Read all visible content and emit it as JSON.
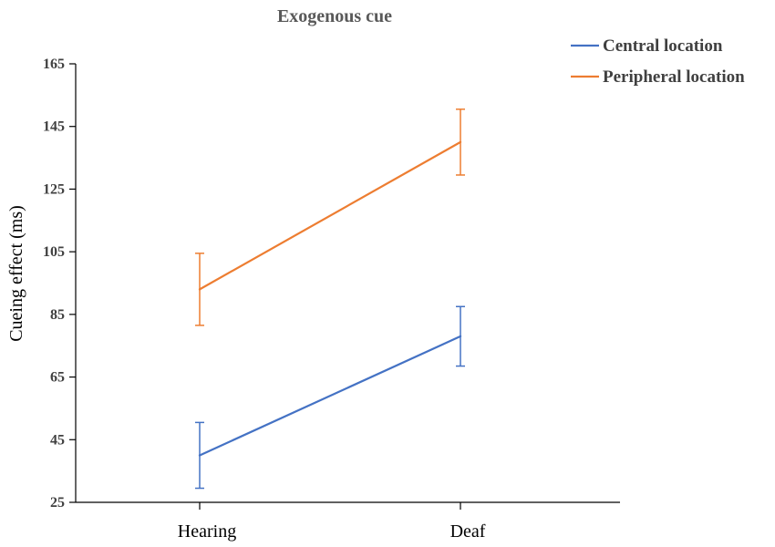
{
  "chart_data": {
    "type": "line",
    "title": "Exogenous cue",
    "xlabel": "",
    "ylabel": "Cueing effect (ms)",
    "categories": [
      "Hearing",
      "Deaf"
    ],
    "ylim": [
      25,
      165
    ],
    "yticks": [
      25,
      45,
      65,
      85,
      105,
      125,
      145,
      165
    ],
    "grid": false,
    "legend_position": "top-right",
    "series": [
      {
        "name": "Central location",
        "color": "#4472C4",
        "values": [
          40,
          78
        ],
        "errors": [
          10.5,
          9.5
        ]
      },
      {
        "name": "Peripheral location",
        "color": "#ED7D31",
        "values": [
          93,
          140
        ],
        "errors": [
          11.5,
          10.5
        ]
      }
    ]
  }
}
